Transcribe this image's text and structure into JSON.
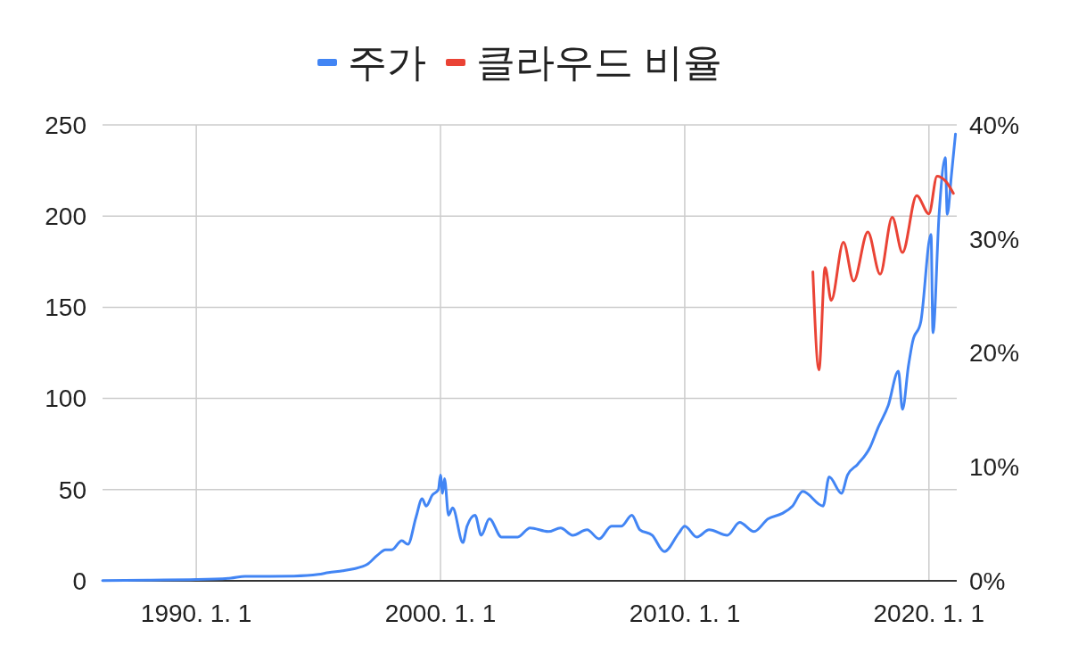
{
  "chart_data": {
    "type": "line",
    "legend": "top",
    "grid": true,
    "xlim": [
      "1986-03-01",
      "2021-02-20"
    ],
    "xticks": [
      {
        "value": "1990-01-01",
        "label": "1990. 1. 1"
      },
      {
        "value": "2000-01-01",
        "label": "2000. 1. 1"
      },
      {
        "value": "2010-01-01",
        "label": "2010. 1. 1"
      },
      {
        "value": "2020-01-01",
        "label": "2020. 1. 1"
      }
    ],
    "ylim": [
      0,
      250
    ],
    "yticks": [
      0,
      50,
      100,
      150,
      200,
      250
    ],
    "y2lim": [
      0,
      40
    ],
    "y2ticks": [
      {
        "value": 0,
        "label": "0%"
      },
      {
        "value": 10,
        "label": "10%"
      },
      {
        "value": 20,
        "label": "20%"
      },
      {
        "value": 30,
        "label": "30%"
      },
      {
        "value": 40,
        "label": "40%"
      }
    ],
    "series": [
      {
        "name": "주가",
        "color": "#4285f4",
        "x": [
          "1986-03",
          "1988-01",
          "1990-01",
          "1991-06",
          "1992-01",
          "1993-01",
          "1994-01",
          "1995-01",
          "1995-06",
          "1996-01",
          "1996-06",
          "1997-01",
          "1997-06",
          "1997-10",
          "1998-01",
          "1998-06",
          "1998-09",
          "1999-01",
          "1999-04",
          "1999-06",
          "1999-09",
          "1999-12",
          "2000-01",
          "2000-02",
          "2000-03",
          "2000-05",
          "2000-07",
          "2000-12",
          "2001-02",
          "2001-06",
          "2001-09",
          "2002-01",
          "2002-07",
          "2003-03",
          "2003-09",
          "2004-06",
          "2004-12",
          "2005-06",
          "2006-01",
          "2006-07",
          "2007-01",
          "2007-06",
          "2007-11",
          "2008-03",
          "2008-09",
          "2009-03",
          "2009-10",
          "2010-01",
          "2010-07",
          "2011-01",
          "2011-10",
          "2012-04",
          "2012-11",
          "2013-06",
          "2014-01",
          "2014-06",
          "2014-11",
          "2015-09",
          "2015-12",
          "2016-06",
          "2016-09",
          "2017-02",
          "2017-08",
          "2017-12",
          "2018-05",
          "2018-10",
          "2018-12",
          "2019-03",
          "2019-05",
          "2019-09",
          "2020-02",
          "2020-03",
          "2020-06",
          "2020-09",
          "2020-10",
          "2020-12",
          "2021-02"
        ],
        "values": [
          0.1,
          0.4,
          0.7,
          1.5,
          2.5,
          2.5,
          2.6,
          3.5,
          4.5,
          5.5,
          6.5,
          9,
          14,
          17,
          17,
          22,
          20,
          35,
          45,
          41,
          47,
          50,
          58,
          48,
          56,
          36,
          40,
          21,
          30,
          36,
          25,
          34,
          24,
          24,
          29,
          27,
          29,
          25,
          28,
          23,
          30,
          30,
          36,
          28,
          25,
          16,
          26,
          30,
          24,
          28,
          25,
          32,
          27,
          34,
          37,
          41,
          49,
          41,
          57,
          48,
          58,
          64,
          73,
          84,
          96,
          115,
          94,
          118,
          131,
          142,
          190,
          136,
          201,
          232,
          201,
          222,
          245
        ]
      },
      {
        "name": "클라우드 비율",
        "color": "#ea4335",
        "axis": "y2",
        "x": [
          "2015-04",
          "2015-07",
          "2015-10",
          "2016-01",
          "2016-07",
          "2016-12",
          "2017-07",
          "2018-01",
          "2018-07",
          "2018-12",
          "2019-07",
          "2020-01",
          "2020-05",
          "2020-09",
          "2021-01"
        ],
        "values": [
          27.1,
          18.5,
          27.5,
          24.6,
          29.7,
          26.3,
          30.6,
          26.9,
          31.9,
          28.8,
          33.8,
          32.2,
          35.5,
          35.1,
          34.0
        ]
      }
    ]
  }
}
